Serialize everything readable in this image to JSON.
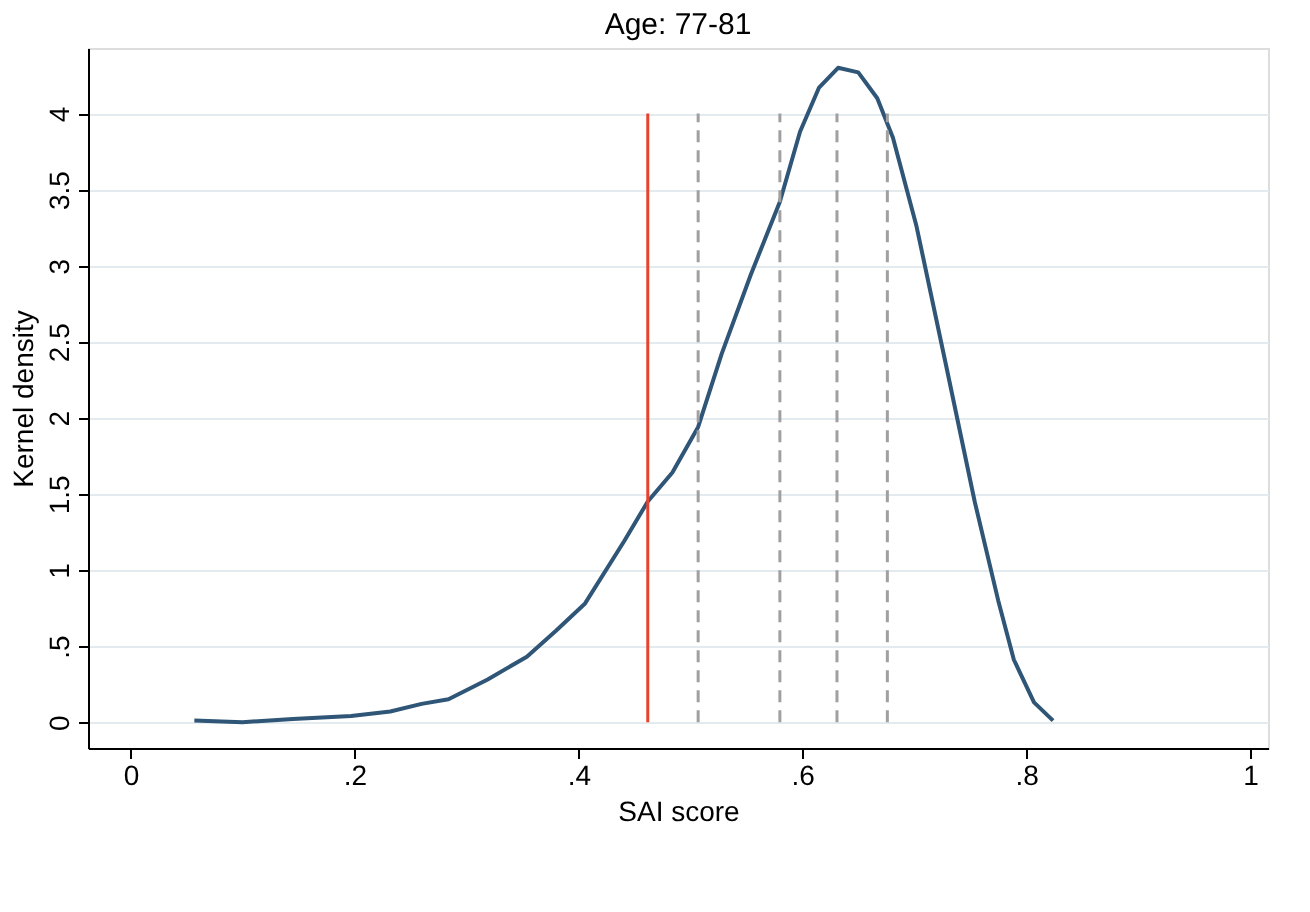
{
  "chart_data": {
    "type": "line",
    "title": "Age: 77-81",
    "xlabel": "SAI score",
    "ylabel": "Kernel density",
    "x": [
      0.057,
      0.1,
      0.145,
      0.197,
      0.232,
      0.26,
      0.284,
      0.319,
      0.354,
      0.38,
      0.406,
      0.441,
      0.462,
      0.484,
      0.507,
      0.528,
      0.554,
      0.58,
      0.598,
      0.615,
      0.632,
      0.65,
      0.667,
      0.681,
      0.702,
      0.728,
      0.754,
      0.775,
      0.789,
      0.807,
      0.824
    ],
    "series": [
      {
        "color": "#2f5577",
        "values": [
          0.01,
          0.0,
          0.02,
          0.04,
          0.07,
          0.12,
          0.15,
          0.28,
          0.43,
          0.6,
          0.78,
          1.19,
          1.45,
          1.64,
          1.94,
          2.42,
          2.94,
          3.42,
          3.88,
          4.17,
          4.3,
          4.27,
          4.1,
          3.84,
          3.26,
          2.36,
          1.45,
          0.8,
          0.41,
          0.13,
          0.01
        ]
      }
    ],
    "xlim": [
      -0.038,
      1.016
    ],
    "ylim": [
      -0.17,
      4.43
    ],
    "xticks": [
      0,
      {
        "value": 0.2,
        "label": ".2"
      },
      {
        "value": 0.4,
        "label": ".4"
      },
      {
        "value": 0.6,
        "label": ".6"
      },
      {
        "value": 0.8,
        "label": ".8"
      },
      1
    ],
    "yticks": [
      0,
      {
        "value": 0.5,
        "label": ".5"
      },
      1,
      {
        "value": 1.5,
        "label": "1.5"
      },
      2,
      {
        "value": 2.5,
        "label": "2.5"
      },
      3,
      {
        "value": 3.5,
        "label": "3.5"
      },
      4
    ],
    "ref_lines": [
      {
        "axis": "x",
        "value": 0.462,
        "color": "#e8412c",
        "line_style": "solid"
      },
      {
        "axis": "x",
        "value": 0.507,
        "color": "#a0a0a0",
        "line_style": "dashed"
      },
      {
        "axis": "x",
        "value": 0.58,
        "color": "#a0a0a0",
        "line_style": "dashed"
      },
      {
        "axis": "x",
        "value": 0.631,
        "color": "#a0a0a0",
        "line_style": "dashed"
      },
      {
        "axis": "x",
        "value": 0.676,
        "color": "#a0a0a0",
        "line_style": "dashed"
      }
    ],
    "grid": "y",
    "marker": "none",
    "line_style": "solid"
  }
}
